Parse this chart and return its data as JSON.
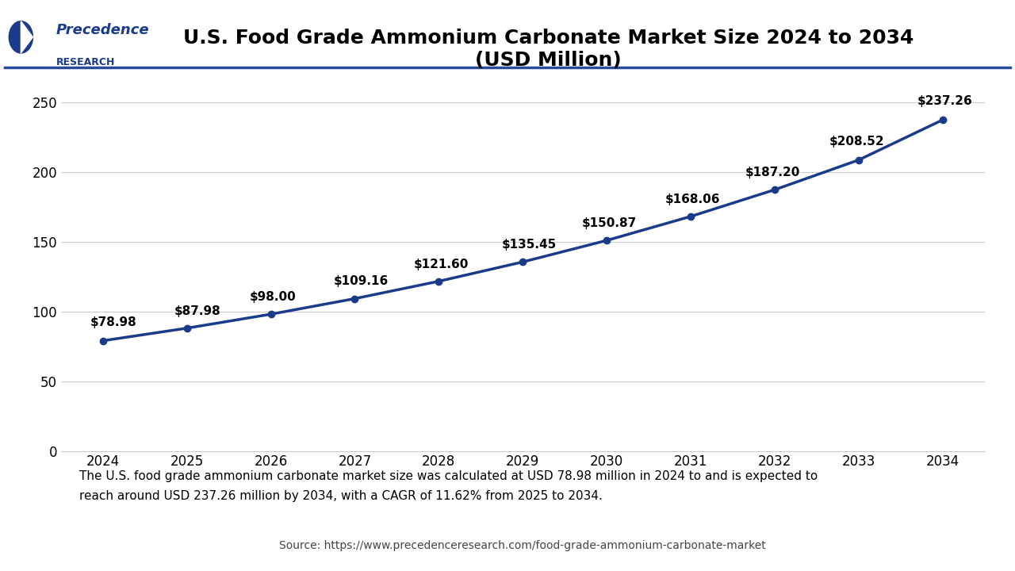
{
  "title_line1": "U.S. Food Grade Ammonium Carbonate Market Size 2024 to 2034",
  "title_line2": "(USD Million)",
  "years": [
    2024,
    2025,
    2026,
    2027,
    2028,
    2029,
    2030,
    2031,
    2032,
    2033,
    2034
  ],
  "values": [
    78.98,
    87.98,
    98.0,
    109.16,
    121.6,
    135.45,
    150.87,
    168.06,
    187.2,
    208.52,
    237.26
  ],
  "labels": [
    "$78.98",
    "$87.98",
    "$98.00",
    "$109.16",
    "$121.60",
    "$135.45",
    "$150.87",
    "$168.06",
    "$187.20",
    "$208.52",
    "$237.26"
  ],
  "line_color": "#1a3a8a",
  "marker_color": "#1a3a8a",
  "background_color": "#ffffff",
  "plot_bg_color": "#ffffff",
  "grid_color": "#cccccc",
  "yticks": [
    0,
    50,
    100,
    150,
    200,
    250
  ],
  "ylim": [
    0,
    270
  ],
  "footer_text": "The U.S. food grade ammonium carbonate market size was calculated at USD 78.98 million in 2024 to and is expected to\nreach around USD 237.26 million by 2034, with a CAGR of 11.62% from 2025 to 2034.",
  "source_text": "Source: https://www.precedenceresearch.com/food-grade-ammonium-carbonate-market",
  "footer_bg_color": "#dce9f5",
  "logo_text_top": "Precedence",
  "logo_text_bottom": "RESEARCH",
  "separator_color": "#2a4a9a",
  "title_fontsize": 18,
  "label_fontsize": 11,
  "tick_fontsize": 12,
  "footer_fontsize": 11,
  "source_fontsize": 10,
  "logo_color": "#1a3a8a"
}
